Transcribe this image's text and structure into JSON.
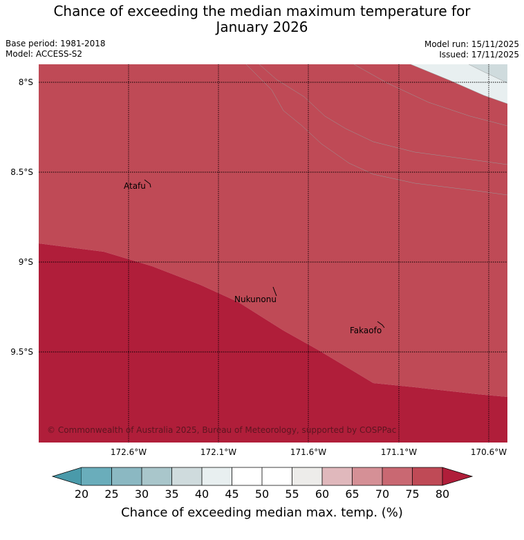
{
  "title": {
    "line1": "Chance of exceeding the median maximum temperature for",
    "line2": "January 2026"
  },
  "meta": {
    "base_period": "Base period: 1981-2018",
    "model": "Model: ACCESS-S2",
    "model_run": "Model run: 15/11/2025",
    "issued": "Issued: 17/11/2025"
  },
  "map": {
    "lat_labels": [
      "8°S",
      "8.5°S",
      "9°S",
      "9.5°S"
    ],
    "lon_labels": [
      "172.6°W",
      "172.1°W",
      "171.6°W",
      "171.1°W",
      "170.6°W"
    ],
    "places": [
      "Atafu",
      "Nukunonu",
      "Fakaofo"
    ],
    "copyright": "© Commonwealth of Australia 2025, Bureau of Meteorology, supported by COSPPac"
  },
  "colorbar": {
    "ticks": [
      "20",
      "25",
      "30",
      "35",
      "40",
      "45",
      "50",
      "55",
      "60",
      "65",
      "70",
      "75",
      "80"
    ],
    "colors": {
      "below_20": "#4a9aaa",
      "c20_25": "#6aadbb",
      "c25_30": "#8bb8c2",
      "c30_35": "#a9c6cb",
      "c35_40": "#cfdbdd",
      "c40_45": "#e8eff0",
      "c45_50": "#ffffff",
      "c50_55": "#ffffff",
      "c55_60": "#edecea",
      "c60_65": "#e0b8bc",
      "c65_70": "#d59096",
      "c70_75": "#c96872",
      "c75_80": "#bf4a56",
      "above_80": "#b01e3a"
    },
    "label": "Chance of exceeding median max. temp. (%)"
  }
}
